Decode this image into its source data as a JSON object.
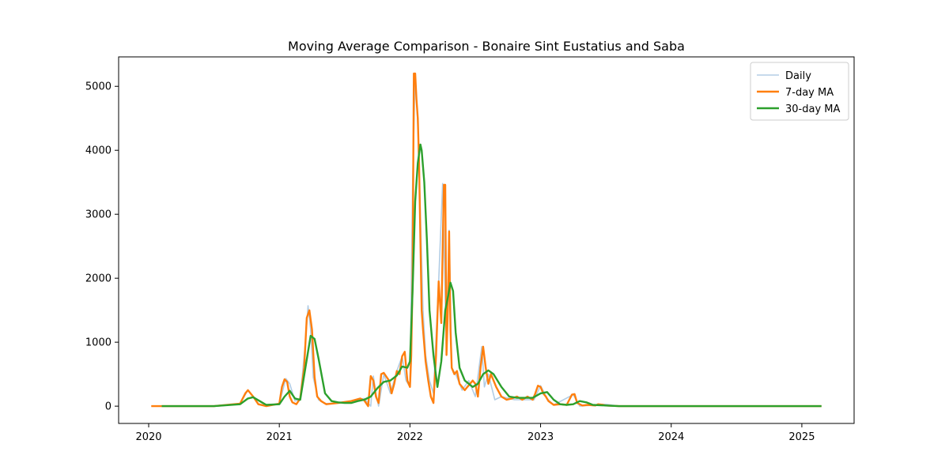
{
  "chart_data": {
    "type": "line",
    "title": "Moving Average Comparison - Bonaire Sint Eustatius and Saba",
    "xlabel": "",
    "ylabel": "",
    "xlim": [
      2019.77,
      2025.4
    ],
    "ylim": [
      -270,
      5460
    ],
    "x_ticks": [
      {
        "value": 2020,
        "label": "2020"
      },
      {
        "value": 2021,
        "label": "2021"
      },
      {
        "value": 2022,
        "label": "2022"
      },
      {
        "value": 2023,
        "label": "2023"
      },
      {
        "value": 2024,
        "label": "2024"
      },
      {
        "value": 2025,
        "label": "2025"
      }
    ],
    "y_ticks": [
      {
        "value": 0,
        "label": "0"
      },
      {
        "value": 1000,
        "label": "1000"
      },
      {
        "value": 2000,
        "label": "2000"
      },
      {
        "value": 3000,
        "label": "3000"
      },
      {
        "value": 4000,
        "label": "4000"
      },
      {
        "value": 5000,
        "label": "5000"
      }
    ],
    "grid": false,
    "legend_position": "top-right",
    "series": [
      {
        "name": "Daily",
        "color": "#aac8e2",
        "x": [
          2020.02,
          2020.5,
          2020.7,
          2020.76,
          2020.8,
          2020.9,
          2021.0,
          2021.05,
          2021.08,
          2021.12,
          2021.16,
          2021.2,
          2021.22,
          2021.24,
          2021.26,
          2021.3,
          2021.35,
          2021.45,
          2021.55,
          2021.65,
          2021.7,
          2021.72,
          2021.74,
          2021.76,
          2021.8,
          2021.85,
          2021.9,
          2021.94,
          2021.97,
          2022.0,
          2022.02,
          2022.04,
          2022.06,
          2022.08,
          2022.1,
          2022.12,
          2022.15,
          2022.18,
          2022.22,
          2022.25,
          2022.28,
          2022.3,
          2022.32,
          2022.35,
          2022.4,
          2022.45,
          2022.5,
          2022.55,
          2022.57,
          2022.6,
          2022.65,
          2022.7,
          2022.8,
          2022.95,
          2023.0,
          2023.05,
          2023.1,
          2023.25,
          2023.3,
          2023.5,
          2023.6,
          2024.0,
          2025.15
        ],
        "y": [
          0,
          0,
          40,
          250,
          150,
          0,
          40,
          430,
          350,
          80,
          120,
          1000,
          1570,
          1200,
          450,
          100,
          40,
          50,
          80,
          120,
          0,
          470,
          200,
          0,
          500,
          200,
          550,
          780,
          400,
          300,
          3450,
          5200,
          4400,
          3000,
          1500,
          800,
          400,
          200,
          1950,
          3480,
          800,
          2750,
          600,
          500,
          250,
          400,
          150,
          930,
          300,
          500,
          100,
          150,
          100,
          100,
          320,
          120,
          20,
          180,
          0,
          30,
          0,
          0,
          0
        ]
      },
      {
        "name": "7-day MA",
        "color": "#ff7f0e",
        "x": [
          2020.02,
          2020.5,
          2020.7,
          2020.74,
          2020.76,
          2020.8,
          2020.84,
          2020.9,
          2021.0,
          2021.02,
          2021.04,
          2021.06,
          2021.08,
          2021.1,
          2021.13,
          2021.16,
          2021.19,
          2021.21,
          2021.23,
          2021.25,
          2021.27,
          2021.29,
          2021.32,
          2021.36,
          2021.45,
          2021.55,
          2021.62,
          2021.65,
          2021.68,
          2021.7,
          2021.72,
          2021.74,
          2021.76,
          2021.78,
          2021.8,
          2021.84,
          2021.86,
          2021.88,
          2021.9,
          2021.92,
          2021.94,
          2021.96,
          2021.98,
          2022.0,
          2022.01,
          2022.02,
          2022.03,
          2022.04,
          2022.05,
          2022.06,
          2022.07,
          2022.08,
          2022.09,
          2022.1,
          2022.12,
          2022.14,
          2022.16,
          2022.18,
          2022.2,
          2022.22,
          2022.24,
          2022.26,
          2022.27,
          2022.28,
          2022.29,
          2022.3,
          2022.31,
          2022.32,
          2022.34,
          2022.36,
          2022.38,
          2022.4,
          2022.42,
          2022.44,
          2022.46,
          2022.48,
          2022.5,
          2022.52,
          2022.54,
          2022.56,
          2022.58,
          2022.6,
          2022.62,
          2022.64,
          2022.66,
          2022.7,
          2022.74,
          2022.78,
          2022.82,
          2022.86,
          2022.9,
          2022.94,
          2022.96,
          2022.98,
          2023.0,
          2023.02,
          2023.04,
          2023.06,
          2023.1,
          2023.15,
          2023.2,
          2023.24,
          2023.26,
          2023.28,
          2023.32,
          2023.36,
          2023.42,
          2023.44,
          2023.48,
          2023.5,
          2023.6,
          2024.0,
          2025.15
        ],
        "y": [
          0,
          0,
          40,
          200,
          250,
          150,
          30,
          0,
          40,
          300,
          420,
          380,
          150,
          60,
          30,
          120,
          600,
          1380,
          1500,
          1200,
          450,
          150,
          80,
          30,
          50,
          80,
          120,
          90,
          0,
          470,
          400,
          150,
          50,
          500,
          520,
          400,
          200,
          350,
          550,
          500,
          780,
          850,
          400,
          300,
          800,
          2000,
          5200,
          5200,
          4800,
          4500,
          3800,
          2600,
          1500,
          1200,
          700,
          400,
          150,
          50,
          800,
          1950,
          1300,
          3460,
          3460,
          800,
          1500,
          2730,
          1200,
          600,
          500,
          550,
          350,
          300,
          250,
          300,
          350,
          400,
          350,
          150,
          600,
          930,
          600,
          350,
          500,
          400,
          300,
          150,
          100,
          120,
          150,
          100,
          150,
          100,
          200,
          320,
          300,
          200,
          150,
          80,
          20,
          30,
          20,
          180,
          190,
          50,
          10,
          20,
          10,
          30,
          20,
          10,
          0,
          0,
          0
        ]
      },
      {
        "name": "30-day MA",
        "color": "#2ca02c",
        "x": [
          2020.1,
          2020.5,
          2020.7,
          2020.76,
          2020.8,
          2020.85,
          2020.9,
          2021.0,
          2021.04,
          2021.08,
          2021.12,
          2021.16,
          2021.2,
          2021.24,
          2021.27,
          2021.3,
          2021.35,
          2021.4,
          2021.45,
          2021.5,
          2021.55,
          2021.6,
          2021.65,
          2021.7,
          2021.75,
          2021.8,
          2021.85,
          2021.9,
          2021.94,
          2021.98,
          2022.0,
          2022.02,
          2022.04,
          2022.06,
          2022.08,
          2022.09,
          2022.11,
          2022.13,
          2022.15,
          2022.18,
          2022.21,
          2022.24,
          2022.27,
          2022.29,
          2022.31,
          2022.33,
          2022.35,
          2022.38,
          2022.42,
          2022.48,
          2022.52,
          2022.56,
          2022.6,
          2022.64,
          2022.7,
          2022.76,
          2022.82,
          2022.88,
          2022.94,
          2023.0,
          2023.05,
          2023.1,
          2023.15,
          2023.2,
          2023.25,
          2023.3,
          2023.35,
          2023.4,
          2023.5,
          2023.6,
          2024.0,
          2025.15
        ],
        "y": [
          0,
          0,
          30,
          120,
          140,
          80,
          20,
          30,
          150,
          240,
          120,
          100,
          600,
          1100,
          1050,
          750,
          200,
          80,
          60,
          50,
          50,
          80,
          100,
          150,
          280,
          380,
          400,
          480,
          620,
          600,
          700,
          1800,
          3200,
          3800,
          4090,
          4000,
          3500,
          2600,
          1500,
          800,
          300,
          700,
          1500,
          1700,
          1930,
          1800,
          1150,
          600,
          400,
          300,
          350,
          500,
          560,
          500,
          300,
          150,
          130,
          130,
          130,
          200,
          220,
          100,
          30,
          20,
          30,
          80,
          60,
          20,
          10,
          0,
          0,
          0
        ]
      }
    ]
  }
}
